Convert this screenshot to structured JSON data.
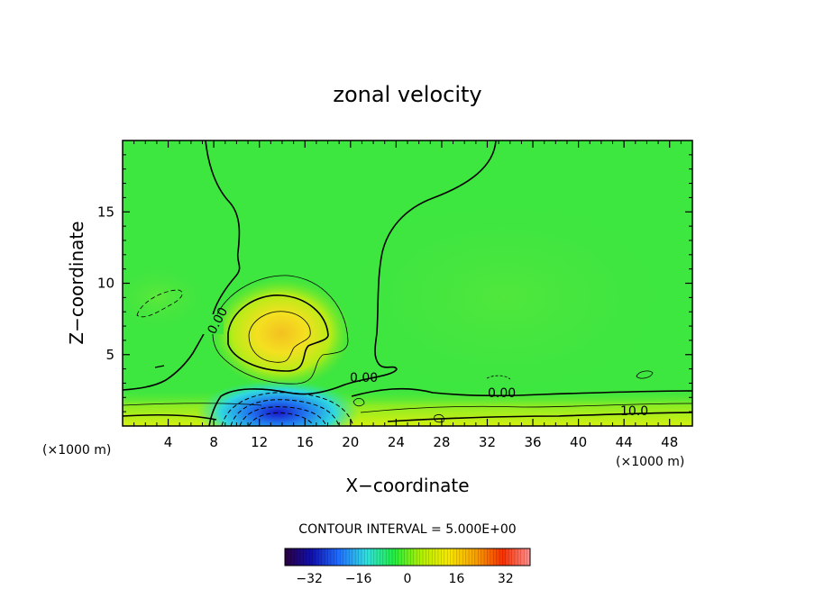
{
  "chart_data": {
    "type": "heatmap",
    "title": "zonal velocity",
    "xlabel": "X−coordinate",
    "ylabel": "Z−coordinate",
    "x_unit_note": "(×1000 m)",
    "z_unit_note": "(×1000 m)",
    "xlim": [
      0,
      50
    ],
    "ylim": [
      0,
      20
    ],
    "x_ticks": [
      4,
      8,
      12,
      16,
      20,
      24,
      28,
      32,
      36,
      40,
      44,
      48
    ],
    "y_ticks": [
      5,
      10,
      15
    ],
    "contour_interval_text": "CONTOUR INTERVAL = 5.000E+00",
    "contour_interval": 5.0,
    "contour_labels": [
      {
        "text": "0.00",
        "x": 7.8,
        "z": 7.0
      },
      {
        "text": "0.00",
        "x": 21.5,
        "z": 3.4
      },
      {
        "text": "0.00",
        "x": 33.5,
        "z": 2.3
      },
      {
        "text": "10.0",
        "x": 45.5,
        "z": 1.0
      }
    ],
    "features": [
      {
        "kind": "max",
        "x": 13.5,
        "z": 6.5,
        "value": 15
      },
      {
        "kind": "min",
        "x": 14.0,
        "z": 0.8,
        "value": -30
      },
      {
        "kind": "near_surface_band",
        "z_max": 2.0,
        "value": 12
      }
    ],
    "colorbar": {
      "range": [
        -40,
        40
      ],
      "tick_values": [
        -32,
        -16,
        0,
        16,
        32
      ],
      "tick_labels": [
        "−32",
        "−16",
        "0",
        "16",
        "32"
      ]
    },
    "colormap": [
      "#2a0040",
      "#1010b0",
      "#2070ff",
      "#30e0e0",
      "#20ee40",
      "#b0f000",
      "#f8e800",
      "#f8a000",
      "#f83000",
      "#ff9090"
    ]
  }
}
